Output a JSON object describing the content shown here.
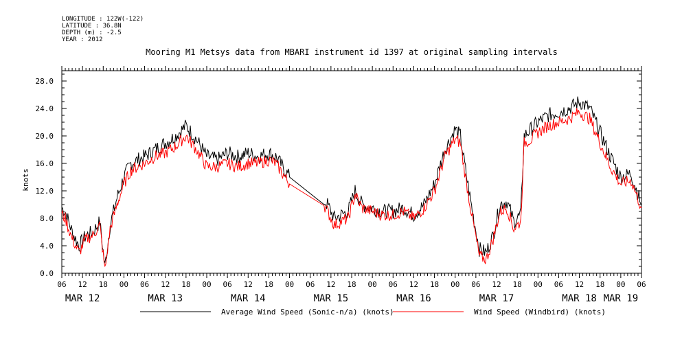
{
  "header": {
    "longitude": "LONGITUDE : 122W(-122)",
    "latitude": "LATITUDE : 36.8N",
    "depth": "DEPTH (m) : -2.5",
    "year": "YEAR : 2012"
  },
  "chart_data": {
    "type": "line",
    "title": "Mooring M1 Metsys data from MBARI instrument id 1397 at original sampling intervals",
    "ylabel": "knots",
    "xlabel": "",
    "ylim": [
      0,
      29.5
    ],
    "yticks": [
      "0.0",
      "4.0",
      "8.0",
      "12.0",
      "16.0",
      "20.0",
      "24.0",
      "28.0"
    ],
    "xlim_hours": [
      6,
      174
    ],
    "xtick_hour_labels": [
      "06",
      "12",
      "18",
      "00",
      "06",
      "12",
      "18",
      "00",
      "06",
      "12",
      "18",
      "00",
      "06",
      "12",
      "18",
      "00",
      "06",
      "12",
      "18",
      "00",
      "06",
      "12",
      "18",
      "00",
      "06",
      "12",
      "18",
      "00",
      "06"
    ],
    "date_labels": [
      "MAR 12",
      "MAR 13",
      "MAR 14",
      "MAR 15",
      "MAR 16",
      "MAR 17",
      "MAR 18",
      "MAR 19"
    ],
    "grid": false,
    "legend_position": "bottom",
    "series": [
      {
        "name": "Average Wind Speed (Sonic-n/a) (knots)",
        "color": "#000000",
        "x": [
          "2012-03-12 06:00",
          "2012-03-12 07:00",
          "2012-03-12 09:00",
          "2012-03-12 11:00",
          "2012-03-12 13:00",
          "2012-03-12 15:00",
          "2012-03-12 17:00",
          "2012-03-12 18:30",
          "2012-03-12 20:00",
          "2012-03-12 22:00",
          "2012-03-13 00:00",
          "2012-03-13 02:00",
          "2012-03-13 04:00",
          "2012-03-13 06:00",
          "2012-03-13 09:00",
          "2012-03-13 12:00",
          "2012-03-13 15:00",
          "2012-03-13 18:00",
          "2012-03-13 21:00",
          "2012-03-14 00:00",
          "2012-03-14 03:00",
          "2012-03-14 06:00",
          "2012-03-14 09:00",
          "2012-03-14 12:00",
          "2012-03-14 15:00",
          "2012-03-14 18:00",
          "2012-03-14 20:00",
          "2012-03-15 00:00",
          "2012-03-15 10:00",
          "2012-03-15 11:00",
          "2012-03-15 13:00",
          "2012-03-15 15:00",
          "2012-03-15 17:00",
          "2012-03-15 19:00",
          "2012-03-15 21:00",
          "2012-03-16 00:00",
          "2012-03-16 03:00",
          "2012-03-16 06:00",
          "2012-03-16 09:00",
          "2012-03-16 12:00",
          "2012-03-16 15:00",
          "2012-03-16 18:00",
          "2012-03-16 21:00",
          "2012-03-17 00:00",
          "2012-03-17 01:30",
          "2012-03-17 03:00",
          "2012-03-17 05:00",
          "2012-03-17 07:00",
          "2012-03-17 09:00",
          "2012-03-17 11:00",
          "2012-03-17 13:00",
          "2012-03-17 15:00",
          "2012-03-17 17:00",
          "2012-03-17 19:00",
          "2012-03-17 20:00",
          "2012-03-17 22:00",
          "2012-03-18 00:00",
          "2012-03-18 03:00",
          "2012-03-18 06:00",
          "2012-03-18 09:00",
          "2012-03-18 12:00",
          "2012-03-18 15:00",
          "2012-03-18 18:00",
          "2012-03-18 21:00",
          "2012-03-19 00:00",
          "2012-03-19 03:00",
          "2012-03-19 06:00"
        ],
        "values": [
          9.5,
          9.0,
          6.0,
          4.0,
          5.5,
          6.0,
          7.5,
          1.0,
          7.0,
          11.0,
          14.0,
          16.0,
          16.5,
          17.0,
          18.0,
          19.0,
          20.0,
          21.5,
          19.5,
          17.0,
          16.5,
          17.5,
          17.0,
          17.5,
          17.0,
          17.5,
          17.0,
          14.0,
          10.5,
          10.0,
          8.0,
          8.5,
          9.0,
          12.0,
          10.0,
          9.5,
          9.0,
          9.0,
          9.5,
          8.5,
          10.0,
          13.0,
          18.0,
          21.0,
          20.0,
          15.0,
          9.0,
          3.5,
          3.0,
          5.5,
          10.0,
          10.5,
          7.5,
          8.5,
          20.0,
          21.0,
          22.0,
          23.0,
          23.5,
          24.0,
          25.0,
          24.0,
          20.5,
          17.0,
          14.0,
          14.5,
          10.0
        ]
      },
      {
        "name": "Wind Speed (Windbird) (knots)",
        "color": "#ff0000",
        "x": [
          "2012-03-12 06:00",
          "2012-03-12 07:00",
          "2012-03-12 09:00",
          "2012-03-12 11:00",
          "2012-03-12 13:00",
          "2012-03-12 15:00",
          "2012-03-12 17:00",
          "2012-03-12 18:30",
          "2012-03-12 20:00",
          "2012-03-12 22:00",
          "2012-03-13 00:00",
          "2012-03-13 02:00",
          "2012-03-13 04:00",
          "2012-03-13 06:00",
          "2012-03-13 09:00",
          "2012-03-13 12:00",
          "2012-03-13 15:00",
          "2012-03-13 18:00",
          "2012-03-13 21:00",
          "2012-03-14 00:00",
          "2012-03-14 03:00",
          "2012-03-14 06:00",
          "2012-03-14 09:00",
          "2012-03-14 12:00",
          "2012-03-14 15:00",
          "2012-03-14 18:00",
          "2012-03-14 20:00",
          "2012-03-15 00:00",
          "2012-03-15 10:00",
          "2012-03-15 11:00",
          "2012-03-15 13:00",
          "2012-03-15 15:00",
          "2012-03-15 17:00",
          "2012-03-15 19:00",
          "2012-03-15 21:00",
          "2012-03-16 00:00",
          "2012-03-16 03:00",
          "2012-03-16 06:00",
          "2012-03-16 09:00",
          "2012-03-16 12:00",
          "2012-03-16 15:00",
          "2012-03-16 18:00",
          "2012-03-16 21:00",
          "2012-03-17 00:00",
          "2012-03-17 01:30",
          "2012-03-17 03:00",
          "2012-03-17 05:00",
          "2012-03-17 07:00",
          "2012-03-17 09:00",
          "2012-03-17 11:00",
          "2012-03-17 13:00",
          "2012-03-17 15:00",
          "2012-03-17 17:00",
          "2012-03-17 19:00",
          "2012-03-17 20:00",
          "2012-03-17 22:00",
          "2012-03-18 00:00",
          "2012-03-18 03:00",
          "2012-03-18 06:00",
          "2012-03-18 09:00",
          "2012-03-18 12:00",
          "2012-03-18 15:00",
          "2012-03-18 18:00",
          "2012-03-18 21:00",
          "2012-03-19 00:00",
          "2012-03-19 03:00",
          "2012-03-19 06:00"
        ],
        "values": [
          8.5,
          8.0,
          5.0,
          3.0,
          5.0,
          5.5,
          7.0,
          0.5,
          6.5,
          10.0,
          13.0,
          15.0,
          15.5,
          16.0,
          17.0,
          17.5,
          18.5,
          20.0,
          18.0,
          15.5,
          15.5,
          16.0,
          15.5,
          16.0,
          16.0,
          16.5,
          16.0,
          13.0,
          10.0,
          9.0,
          7.0,
          7.5,
          8.0,
          11.5,
          9.5,
          9.0,
          8.5,
          8.5,
          9.0,
          8.0,
          9.5,
          12.0,
          17.0,
          19.5,
          19.0,
          14.0,
          8.0,
          2.5,
          2.0,
          5.0,
          9.0,
          9.5,
          6.5,
          7.5,
          19.0,
          19.5,
          20.5,
          21.5,
          22.0,
          22.5,
          23.5,
          22.5,
          19.0,
          15.5,
          13.0,
          13.5,
          9.5
        ]
      }
    ]
  }
}
